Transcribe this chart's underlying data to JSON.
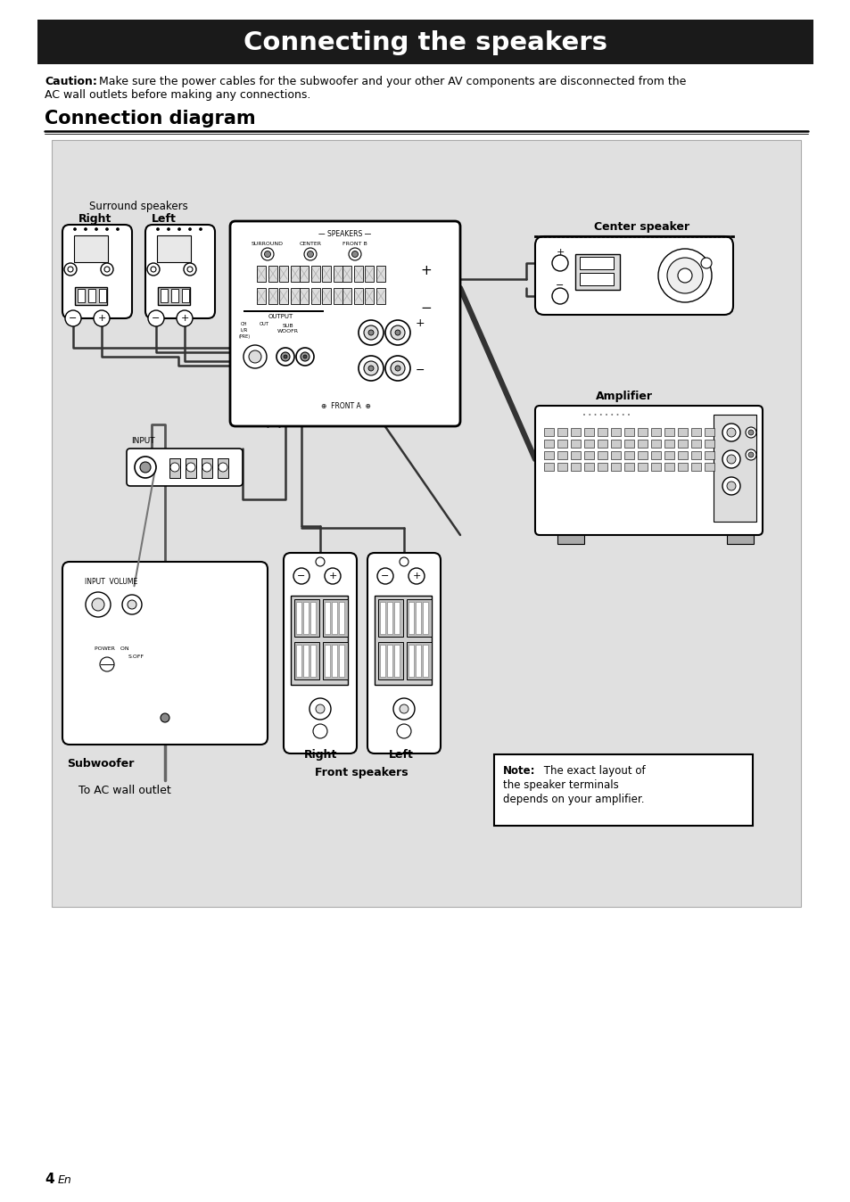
{
  "title": "Connecting the speakers",
  "title_bg": "#1a1a1a",
  "title_color": "#ffffff",
  "caution_bold": "Caution:",
  "caution_rest": " Make sure the power cables for the subwoofer and your other AV components are disconnected from the",
  "caution_line2": "AC wall outlets before making any connections.",
  "section_title": "Connection diagram",
  "diagram_bg": "#e0e0e0",
  "bg_color": "#ffffff",
  "note_bold": "Note:",
  "note_rest": " The exact layout of",
  "note_line2": "the speaker terminals",
  "note_line3": "depends on your amplifier.",
  "page_num": "4",
  "page_en": "En"
}
